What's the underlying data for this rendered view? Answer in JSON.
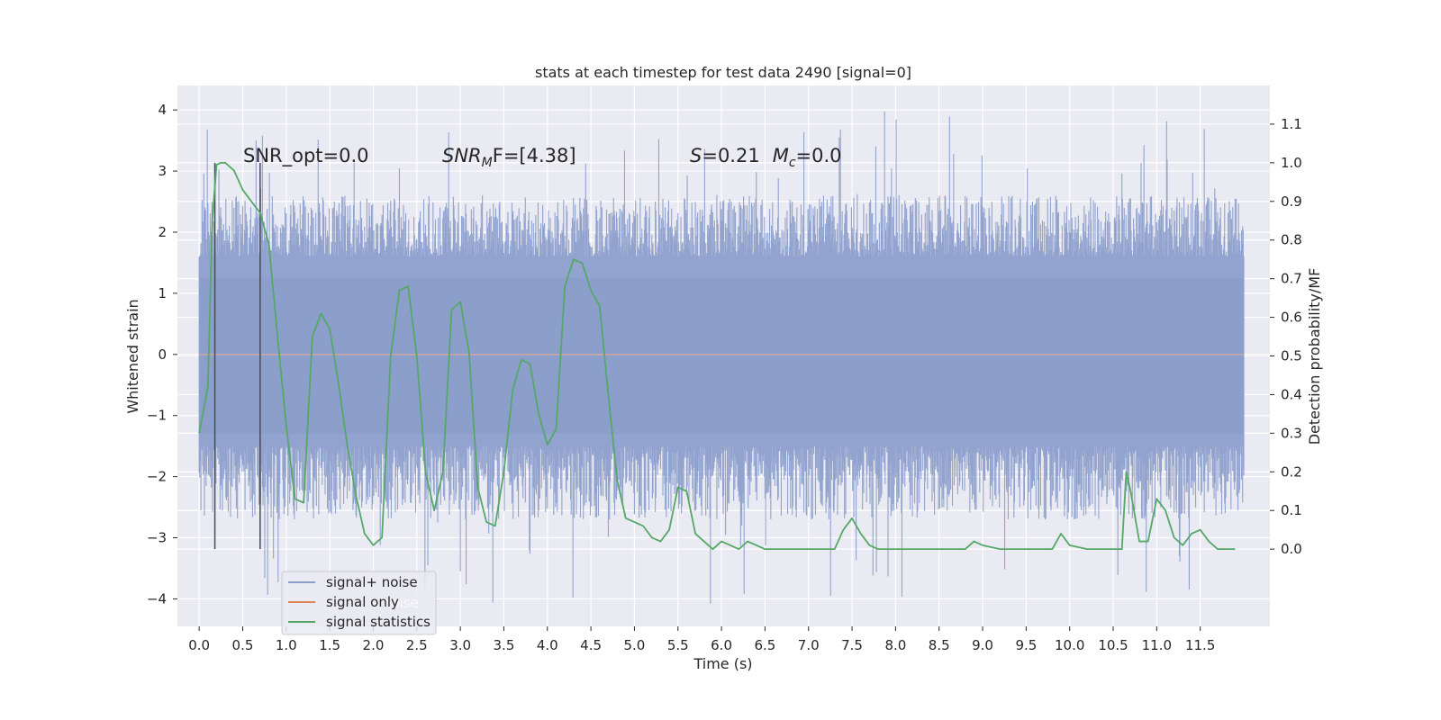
{
  "chart_data": {
    "type": "line",
    "title": "stats at each timestep for test data 2490 [signal=0]",
    "xlabel": "Time (s)",
    "ylabel": "Whitened strain",
    "ylabel_right": "Detection probability/MF",
    "xlim": [
      -0.25,
      12.3
    ],
    "ylim": [
      -4.45,
      4.4
    ],
    "ylim_right": [
      -0.2,
      1.2
    ],
    "grid": true,
    "x_ticks": [
      0.0,
      0.5,
      1.0,
      1.5,
      2.0,
      2.5,
      3.0,
      3.5,
      4.0,
      4.5,
      5.0,
      5.5,
      6.0,
      6.5,
      7.0,
      7.5,
      8.0,
      8.5,
      9.0,
      9.5,
      10.0,
      10.5,
      11.0,
      11.5
    ],
    "x_tick_labels": [
      "0.0",
      "0.5",
      "1.0",
      "1.5",
      "2.0",
      "2.5",
      "3.0",
      "3.5",
      "4.0",
      "4.5",
      "5.0",
      "5.5",
      "6.0",
      "6.5",
      "7.0",
      "7.5",
      "8.0",
      "8.5",
      "9.0",
      "9.5",
      "10.0",
      "10.5",
      "11.0",
      "11.5"
    ],
    "y_ticks": [
      -4,
      -3,
      -2,
      -1,
      0,
      1,
      2,
      3,
      4
    ],
    "y_tick_labels": [
      "−4",
      "−3",
      "−2",
      "−1",
      "0",
      "1",
      "2",
      "3",
      "4"
    ],
    "y_right_ticks": [
      0.0,
      0.1,
      0.2,
      0.3,
      0.4,
      0.5,
      0.6,
      0.7,
      0.8,
      0.9,
      1.0,
      1.1
    ],
    "y_right_tick_labels": [
      "0.0",
      "0.1",
      "0.2",
      "0.3",
      "0.4",
      "0.5",
      "0.6",
      "0.7",
      "0.8",
      "0.9",
      "1.0",
      "1.1"
    ],
    "legend": {
      "location": "lower-left",
      "entries": [
        {
          "label": "signal+ noise",
          "color": "#8c9fcb"
        },
        {
          "label": "signal only",
          "color": "#dd8452"
        },
        {
          "label": "signal statistics",
          "color": "#55a868"
        }
      ],
      "ghost_text": "noise"
    },
    "annotations": {
      "snr_opt": "SNR_opt=0.0",
      "snr_mf_prefix": "SNR",
      "snr_mf_sub": "M",
      "snr_mf_suffix": "F=[4.38]",
      "s_var": "S",
      "s_value": "=0.21",
      "mc_var": "M",
      "mc_sub": "c",
      "mc_value": "=0.0"
    },
    "vertical_lines_x": [
      0.18,
      0.7
    ],
    "series": [
      {
        "name": "signal+ noise",
        "axis": "left",
        "color": "#8c9fcb",
        "x_range": [
          0.0,
          12.0
        ],
        "envelope": {
          "upper_typical": [
            1.6,
            2.6
          ],
          "lower_typical": [
            -1.5,
            -2.7
          ],
          "peak_max": 4.0,
          "peak_min": -4.1
        }
      },
      {
        "name": "signal only",
        "axis": "left",
        "color": "#dd8452",
        "x": [
          0.0,
          12.0
        ],
        "y": [
          0.0,
          0.0
        ]
      },
      {
        "name": "signal statistics",
        "axis": "right",
        "color": "#55a868",
        "x": [
          0.0,
          0.1,
          0.15,
          0.2,
          0.25,
          0.3,
          0.4,
          0.5,
          0.6,
          0.7,
          0.8,
          0.9,
          1.0,
          1.1,
          1.2,
          1.3,
          1.4,
          1.5,
          1.6,
          1.7,
          1.8,
          1.9,
          2.0,
          2.1,
          2.2,
          2.3,
          2.4,
          2.5,
          2.6,
          2.7,
          2.8,
          2.9,
          3.0,
          3.1,
          3.2,
          3.3,
          3.4,
          3.5,
          3.6,
          3.7,
          3.8,
          3.9,
          4.0,
          4.1,
          4.2,
          4.3,
          4.4,
          4.5,
          4.6,
          4.7,
          4.8,
          4.9,
          5.0,
          5.1,
          5.2,
          5.3,
          5.4,
          5.5,
          5.6,
          5.7,
          5.8,
          5.9,
          6.0,
          6.1,
          6.2,
          6.3,
          6.4,
          6.5,
          7.0,
          7.3,
          7.4,
          7.5,
          7.6,
          7.7,
          7.8,
          8.0,
          8.5,
          8.8,
          8.9,
          9.0,
          9.2,
          9.5,
          9.8,
          9.9,
          10.0,
          10.2,
          10.5,
          10.6,
          10.65,
          10.7,
          10.8,
          10.9,
          11.0,
          11.1,
          11.2,
          11.3,
          11.4,
          11.5,
          11.6,
          11.7,
          11.9
        ],
        "y": [
          0.3,
          0.42,
          0.85,
          0.995,
          1.0,
          1.0,
          0.98,
          0.93,
          0.9,
          0.87,
          0.79,
          0.55,
          0.32,
          0.13,
          0.12,
          0.55,
          0.61,
          0.57,
          0.43,
          0.27,
          0.14,
          0.04,
          0.01,
          0.03,
          0.5,
          0.67,
          0.68,
          0.5,
          0.2,
          0.1,
          0.2,
          0.62,
          0.64,
          0.51,
          0.16,
          0.07,
          0.06,
          0.2,
          0.41,
          0.49,
          0.48,
          0.35,
          0.27,
          0.31,
          0.68,
          0.75,
          0.74,
          0.67,
          0.63,
          0.4,
          0.18,
          0.08,
          0.07,
          0.06,
          0.03,
          0.02,
          0.05,
          0.16,
          0.15,
          0.04,
          0.02,
          0.0,
          0.02,
          0.01,
          0.0,
          0.02,
          0.01,
          0.0,
          0.0,
          0.0,
          0.05,
          0.08,
          0.04,
          0.01,
          0.0,
          0.0,
          0.0,
          0.0,
          0.02,
          0.01,
          0.0,
          0.0,
          0.0,
          0.04,
          0.01,
          0.0,
          0.0,
          0.0,
          0.2,
          0.15,
          0.02,
          0.02,
          0.13,
          0.1,
          0.03,
          0.01,
          0.04,
          0.05,
          0.02,
          0.0,
          0.0
        ]
      }
    ]
  }
}
